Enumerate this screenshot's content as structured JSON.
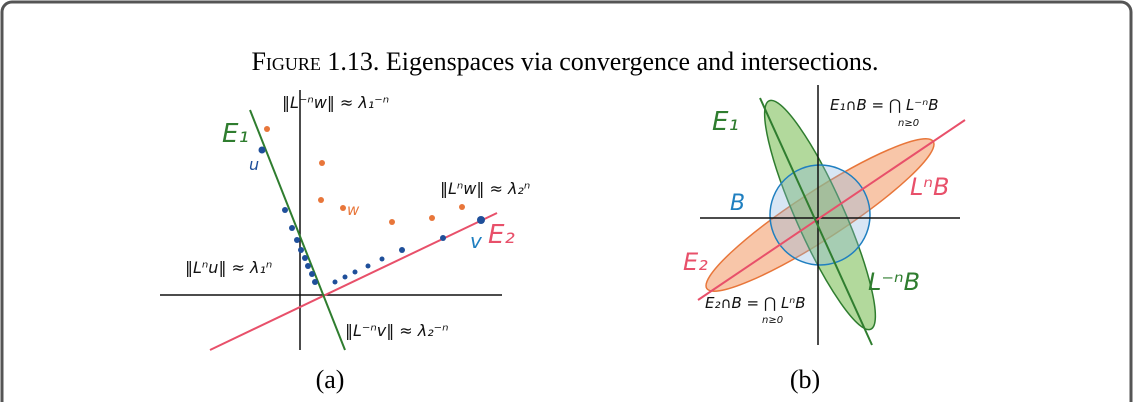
{
  "figure": {
    "label": "Figure 1.13.",
    "caption": "Eigenspaces via convergence and intersections."
  },
  "panel_a": {
    "sublabel": "(a)",
    "labels": {
      "e1": "E₁",
      "u": "u",
      "lw_inv": "‖L⁻ⁿw‖ ≈ λ₁⁻ⁿ",
      "w": "w",
      "lw": "‖Lⁿw‖ ≈ λ₂ⁿ",
      "v": "v",
      "e2": "E₂",
      "lu": "‖Lⁿu‖ ≈ λ₁ⁿ",
      "lv_inv": "‖L⁻ⁿv‖ ≈ λ₂⁻ⁿ"
    }
  },
  "panel_b": {
    "sublabel": "(b)",
    "labels": {
      "e1": "E₁",
      "e1_cap": "E₁∩B = ⋂ L⁻ⁿB",
      "e1_cap_index": "n≥0",
      "b": "B",
      "lnb": "LⁿB",
      "e2": "E₂",
      "linvb": "L⁻ⁿB",
      "e2_cap": "E₂∩B = ⋂ LⁿB",
      "e2_cap_index": "n≥0"
    }
  }
}
